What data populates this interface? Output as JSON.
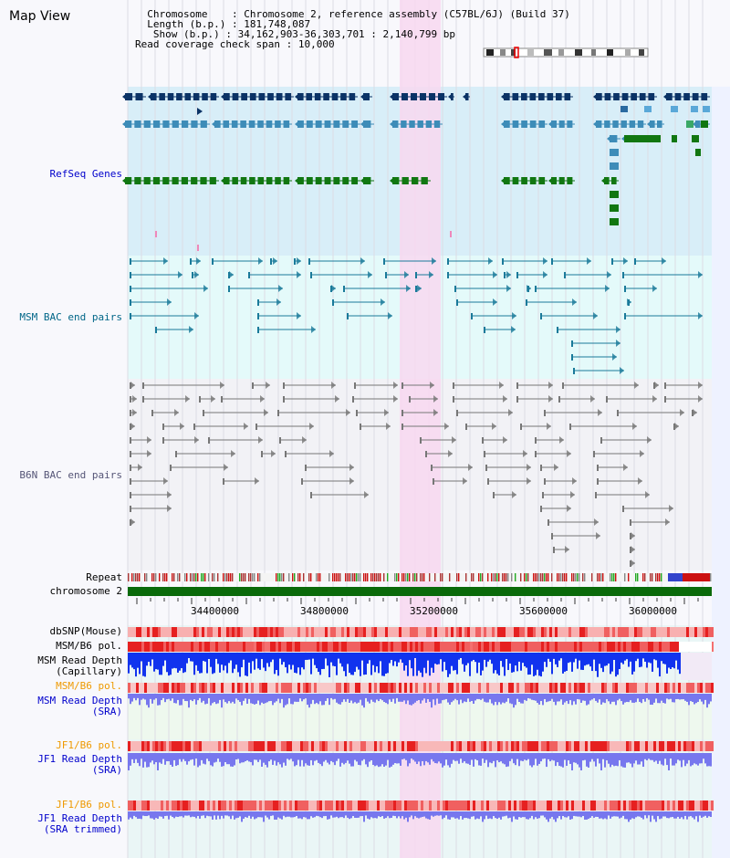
{
  "title": "Map View",
  "info": {
    "chromosome_label": "Chromosome",
    "chromosome_value": "Chromosome 2, reference assembly (C57BL/6J) (Build 37)",
    "length_label": "Length (b.p.)",
    "length_value": "181,748,087",
    "show_label": "Show (b.p.)",
    "show_value": "34,162,903-36,303,701 : 2,140,799 bp",
    "span_label": "Read coverage check span",
    "span_value": "10,000"
  },
  "tracks": {
    "refseq": "RefSeq Genes",
    "msm_bac": "MSM BAC end pairs",
    "b6n_bac": "B6N BAC end pairs",
    "repeat": "Repeat",
    "chromosome": "chromosome 2",
    "dbsnp": "dbSNP(Mouse)",
    "msm_b6_pol": "MSM/B6 pol.",
    "msm_depth_cap_1": "MSM Read Depth",
    "msm_depth_cap_2": "(Capillary)",
    "msm_b6_pol_sra": "MSM/B6 pol.",
    "msm_depth_sra_1": "MSM Read Depth",
    "msm_depth_sra_2": "(SRA)",
    "jf1_b6_pol": "JF1/B6 pol.",
    "jf1_depth_1": "JF1 Read Depth",
    "jf1_depth_2": "(SRA)",
    "jf1_b6_pol_trim": "JF1/B6 pol.",
    "jf1_trim_1": "JF1 Read Depth",
    "jf1_trim_2": "(SRA trimmed)"
  },
  "axis_ticks": [
    "34400000",
    "34800000",
    "35200000",
    "35600000",
    "36000000"
  ],
  "colors": {
    "refseq_bg": "#d8eef8",
    "bac_bg": "#e4fafa",
    "highlight": "#f8d8f0",
    "gene_dark": "#0b3366",
    "gene_mid": "#3d8cb8",
    "gene_green": "#117711",
    "chromosome_bar": "#0a6a0a",
    "depth_blue": "#1133ee",
    "depth_violet": "#7777ee",
    "label_blue": "#0000cc",
    "label_orange": "#ee9900",
    "label_teal": "#006688"
  }
}
